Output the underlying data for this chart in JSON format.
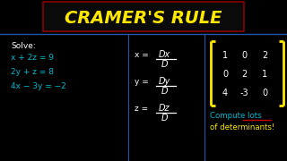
{
  "background_color": "#000000",
  "title": "CRAMER'S RULE",
  "title_color": "#FFE800",
  "title_box_edge_color": "#8B0000",
  "separator_color": "#2255AA",
  "left_label": "Solve:",
  "left_eq1": "x + 2z = 9",
  "left_eq2": "2y + z = 8",
  "left_eq3": "4x − 3y = −2",
  "left_color": "#00BBCC",
  "mid_color": "#FFFFFF",
  "matrix_color": "#FFFFFF",
  "bracket_color": "#FFE800",
  "compute_text1": "Compute lots",
  "compute_text2": "of determinants!",
  "compute_color1": "#00BBCC",
  "compute_color2": "#FFE800",
  "underline_color": "#CC0000",
  "matrix_vals": [
    [
      "1",
      "0",
      "2"
    ],
    [
      "0",
      "2",
      "1"
    ],
    [
      "4",
      "-3",
      "0"
    ]
  ]
}
